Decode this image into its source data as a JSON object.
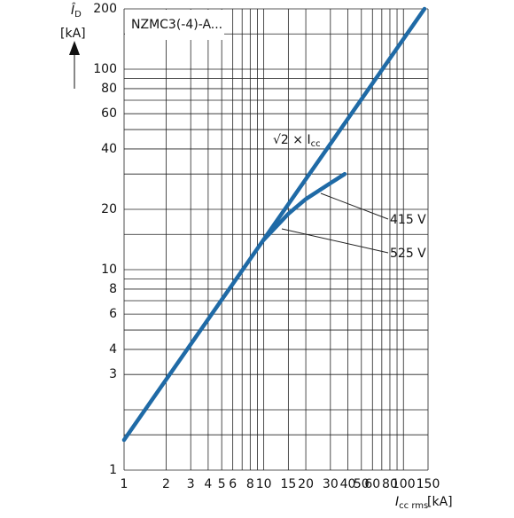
{
  "chart_data": {
    "type": "line",
    "box_label": "NZMC3(-4)-A...",
    "y_label": {
      "text": "Î",
      "sub": "D",
      "unit": "[kA]"
    },
    "x_label": {
      "text": "I",
      "sub": "cc rms",
      "unit": "[kA]"
    },
    "log_x": true,
    "log_y": true,
    "grid": true,
    "xlim": [
      1,
      150
    ],
    "ylim": [
      1,
      200
    ],
    "xticks": [
      1,
      2,
      3,
      4,
      5,
      6,
      8,
      10,
      15,
      20,
      30,
      40,
      50,
      60,
      80,
      100,
      150
    ],
    "yticks": [
      1,
      3,
      4,
      6,
      8,
      10,
      20,
      40,
      60,
      80,
      100,
      200
    ],
    "x_minor_grid": [
      7,
      9,
      70,
      90
    ],
    "y_minor_grid": [
      1.5,
      2,
      5,
      7,
      9,
      15,
      30,
      50,
      70,
      90,
      150
    ],
    "series": [
      {
        "name": "√2 × I",
        "sub": "cc",
        "color": "#1f6aa6",
        "x": [
          1,
          141.4
        ],
        "values": [
          1.414,
          200
        ]
      },
      {
        "name": "415 V",
        "color": "#1f6aa6",
        "x": [
          10,
          15,
          20,
          30,
          38
        ],
        "values": [
          14.1,
          19,
          22.5,
          27,
          30
        ]
      }
    ],
    "annotations": [
      "525 V"
    ]
  }
}
